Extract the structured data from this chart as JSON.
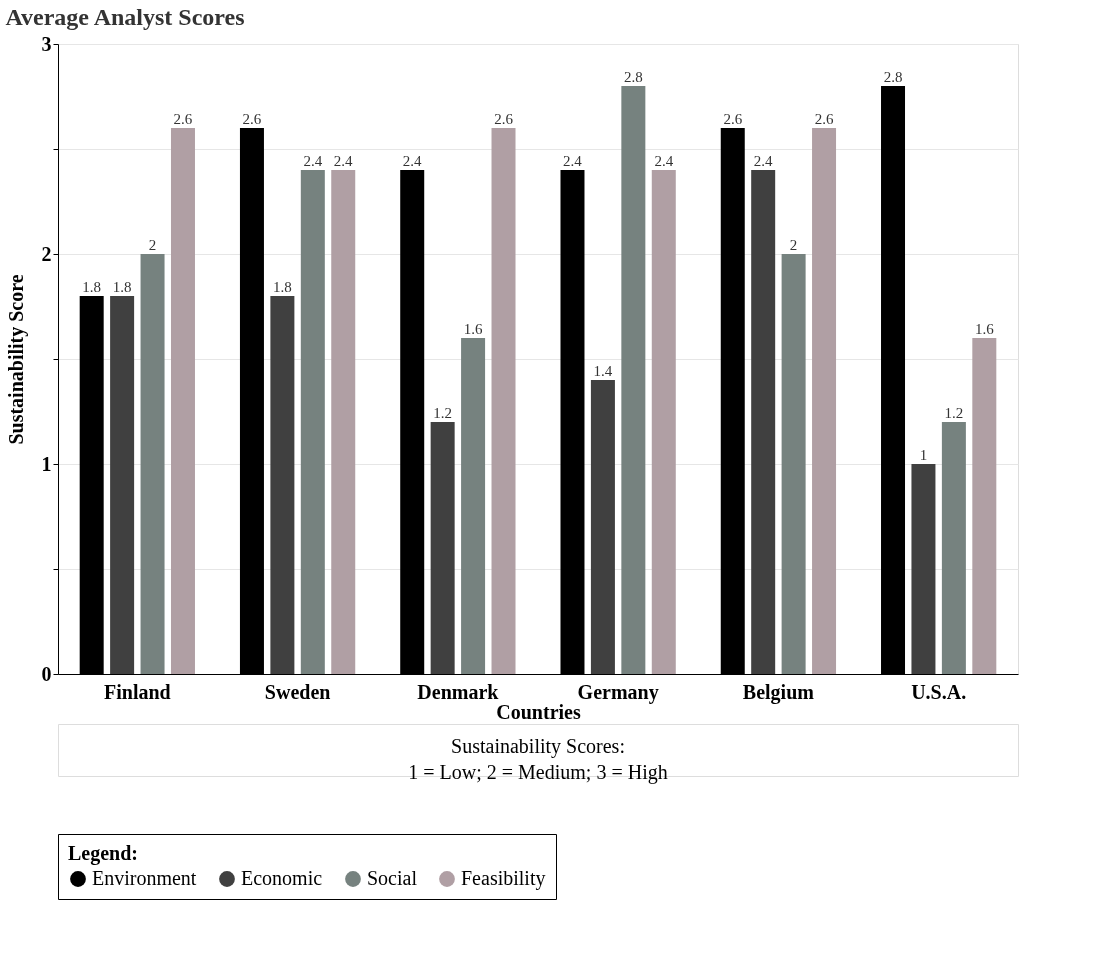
{
  "chart_data": {
    "type": "bar",
    "title": "Average Analyst Scores",
    "xlabel": "Countries",
    "ylabel": "Sustainability Score",
    "legend_title": "Legend:",
    "categories": [
      "Finland",
      "Sweden",
      "Denmark",
      "Germany",
      "Belgium",
      "U.S.A."
    ],
    "series": [
      {
        "name": "Environment",
        "color": "#000000",
        "values": [
          1.8,
          2.6,
          2.4,
          2.4,
          2.6,
          2.8
        ]
      },
      {
        "name": "Economic",
        "color": "#404040",
        "values": [
          1.8,
          1.8,
          1.2,
          1.4,
          2.4,
          1.0
        ]
      },
      {
        "name": "Social",
        "color": "#76827f",
        "values": [
          2.0,
          2.4,
          1.6,
          2.8,
          2.0,
          1.2
        ]
      },
      {
        "name": "Feasibility",
        "color": "#b09fa4",
        "values": [
          2.6,
          2.4,
          2.6,
          2.4,
          2.6,
          1.6
        ]
      }
    ],
    "ylim": [
      0,
      3
    ],
    "yticks": [
      0,
      {
        "value": 0.5,
        "label": null
      },
      1,
      {
        "value": 1.5,
        "label": null
      },
      2,
      {
        "value": 2.5,
        "label": null
      },
      3
    ],
    "grid": "y",
    "data_labels": true,
    "legend": "bottom",
    "annotations": [
      "Sustainability Scores:",
      "1 = Low; 2 = Medium; 3 = High"
    ]
  }
}
